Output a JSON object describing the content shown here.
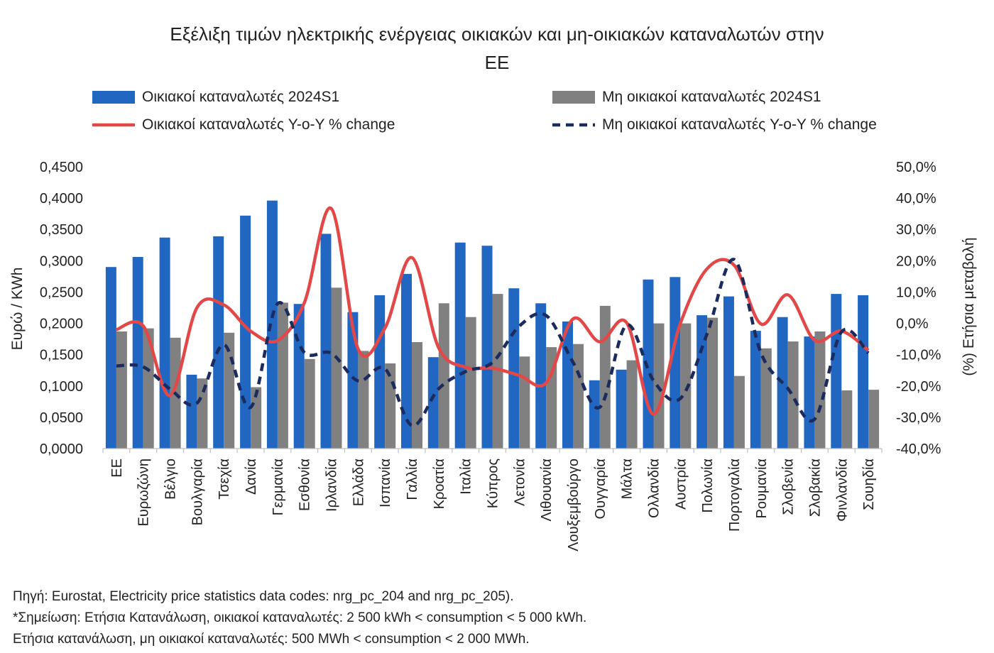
{
  "chart_data": {
    "type": "bar",
    "title": "Εξέλιξη τιμών ηλεκτρικής ενέργειας οικιακών και μη-οικιακών καταναλωτών στην ΕΕ",
    "ylabel": "Ευρώ / KWh",
    "y2label": "(%) Ετήσια μεταβολή",
    "ylim": [
      0,
      0.45
    ],
    "y2lim": [
      -40,
      50
    ],
    "yticks": [
      "0,0000",
      "0,0500",
      "0,1000",
      "0,1500",
      "0,2000",
      "0,2500",
      "0,3000",
      "0,3500",
      "0,4000",
      "0,4500"
    ],
    "y2ticks": [
      "-40,0%",
      "-30,0%",
      "-20,0%",
      "-10,0%",
      "0,0%",
      "10,0%",
      "20,0%",
      "30,0%",
      "40,0%",
      "50,0%"
    ],
    "legend": "top",
    "grid": false,
    "categories": [
      "ΕΕ",
      "Ευρωζώνη",
      "Βέλγιο",
      "Βουλγαρία",
      "Τσεχία",
      "Δανία",
      "Γερμανία",
      "Εσθονία",
      "Ιρλανδία",
      "Ελλάδα",
      "Ισπανία",
      "Γαλλία",
      "Κροατία",
      "Ιταλία",
      "Κύπρος",
      "Λετονία",
      "Λιθουανία",
      "Λουξεμβούργο",
      "Ουγγαρία",
      "Μάλτα",
      "Ολλανδία",
      "Αυστρία",
      "Πολωνία",
      "Πορτογαλία",
      "Ρουμανία",
      "Σλοβενία",
      "Σλοβακία",
      "Φινλανδία",
      "Σουηδία"
    ],
    "series": [
      {
        "name": "Οικιακοί καταναλωτές 2024S1",
        "type": "bar",
        "axis": "left",
        "color": "#2167c2",
        "values": [
          0.29,
          0.306,
          0.337,
          0.118,
          0.339,
          0.372,
          0.396,
          0.231,
          0.343,
          0.218,
          0.245,
          0.279,
          0.146,
          0.329,
          0.324,
          0.256,
          0.232,
          0.203,
          0.109,
          0.126,
          0.27,
          0.274,
          0.213,
          0.243,
          0.188,
          0.21,
          0.179,
          0.247,
          0.245
        ]
      },
      {
        "name": "Μη οικιακοί καταναλωτές 2024S1",
        "type": "bar",
        "axis": "left",
        "color": "#808080",
        "values": [
          0.187,
          0.192,
          0.177,
          0.112,
          0.185,
          0.098,
          0.233,
          0.143,
          0.257,
          0.156,
          0.136,
          0.17,
          0.232,
          0.21,
          0.247,
          0.147,
          0.162,
          0.167,
          0.228,
          0.141,
          0.2,
          0.2,
          0.209,
          0.116,
          0.16,
          0.171,
          0.187,
          0.093,
          0.094
        ]
      },
      {
        "name": "Οικιακοί καταναλωτές Y-o-Y % change",
        "type": "line",
        "axis": "right",
        "smooth": true,
        "color": "#e34848",
        "values": [
          -2.0,
          -0.8,
          -23.0,
          5.0,
          5.9,
          -2.5,
          -5.5,
          6.6,
          36.7,
          -8.2,
          -1.5,
          21.0,
          -7.8,
          -14.0,
          -14.3,
          -16.6,
          -19.0,
          1.4,
          -5.9,
          0.2,
          -29.0,
          0.0,
          17.5,
          18.6,
          -0.2,
          9.1,
          -5.4,
          -2.5,
          -8.6
        ]
      },
      {
        "name": "Μη οικιακοί καταναλωτές Y-o-Y % change",
        "type": "line",
        "axis": "right",
        "smooth": true,
        "dash": "dashed",
        "color": "#1c2b5e",
        "values": [
          -13.6,
          -13.9,
          -21.0,
          -25.5,
          -6.8,
          -26.8,
          6.3,
          -9.3,
          -9.5,
          -18.4,
          -14.5,
          -32.6,
          -20.9,
          -15.4,
          -12.5,
          -0.9,
          2.5,
          -12.4,
          -26.8,
          -0.5,
          -18.3,
          -24.0,
          -3.2,
          20.4,
          -9.5,
          -20.8,
          -30.6,
          -2.7,
          -9.5
        ]
      }
    ]
  },
  "notes": [
    "Πηγή: Eurostat, Electricity price statistics data codes: nrg_pc_204 and nrg_pc_205).",
    "*Σημείωση: Ετήσια Κατανάλωση, οικιακοί καταναλωτές: 2 500 kWh < consumption < 5 000 kWh.",
    "Ετήσια κατανάλωση, μη οικιακοί καταναλωτές: 500 MWh < consumption < 2 000 MWh."
  ]
}
